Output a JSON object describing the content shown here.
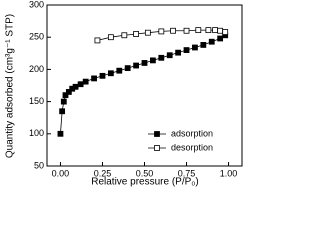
{
  "chart_data": {
    "type": "scatter-line",
    "x_label": "Relative pressure (P/P₀)",
    "y_label": "Quantity adsorbed (cm³g⁻¹ STP)",
    "xlim": [
      -0.08,
      1.08
    ],
    "ylim": [
      50,
      300
    ],
    "xticks": [
      {
        "value": 0,
        "label": "0.00"
      },
      {
        "value": 0.25,
        "label": "0.25"
      },
      {
        "value": 0.5,
        "label": "0.50"
      },
      {
        "value": 0.75,
        "label": "0.75"
      },
      {
        "value": 1,
        "label": "1.00"
      }
    ],
    "yticks": [
      50,
      100,
      150,
      200,
      250,
      300
    ],
    "legend": "lower right",
    "series": [
      {
        "name": "adsorption",
        "color": "#000000",
        "marker": "filled-square",
        "x": [
          0.0,
          0.01,
          0.02,
          0.03,
          0.05,
          0.07,
          0.09,
          0.12,
          0.15,
          0.2,
          0.25,
          0.3,
          0.35,
          0.4,
          0.45,
          0.5,
          0.55,
          0.6,
          0.65,
          0.7,
          0.75,
          0.8,
          0.85,
          0.9,
          0.95,
          0.98
        ],
        "values": [
          100,
          135,
          150,
          160,
          165,
          170,
          173,
          177,
          181,
          186,
          190,
          194,
          198,
          202,
          206,
          210,
          214,
          218,
          222,
          226,
          230,
          234,
          238,
          243,
          248,
          253
        ]
      },
      {
        "name": "desorption",
        "color": "#000000",
        "marker": "open-square",
        "x": [
          0.22,
          0.3,
          0.38,
          0.45,
          0.52,
          0.6,
          0.67,
          0.75,
          0.82,
          0.88,
          0.92,
          0.95,
          0.98
        ],
        "values": [
          245,
          250,
          253,
          255,
          257,
          259,
          260,
          260,
          261,
          261,
          261,
          260,
          258
        ]
      }
    ]
  }
}
